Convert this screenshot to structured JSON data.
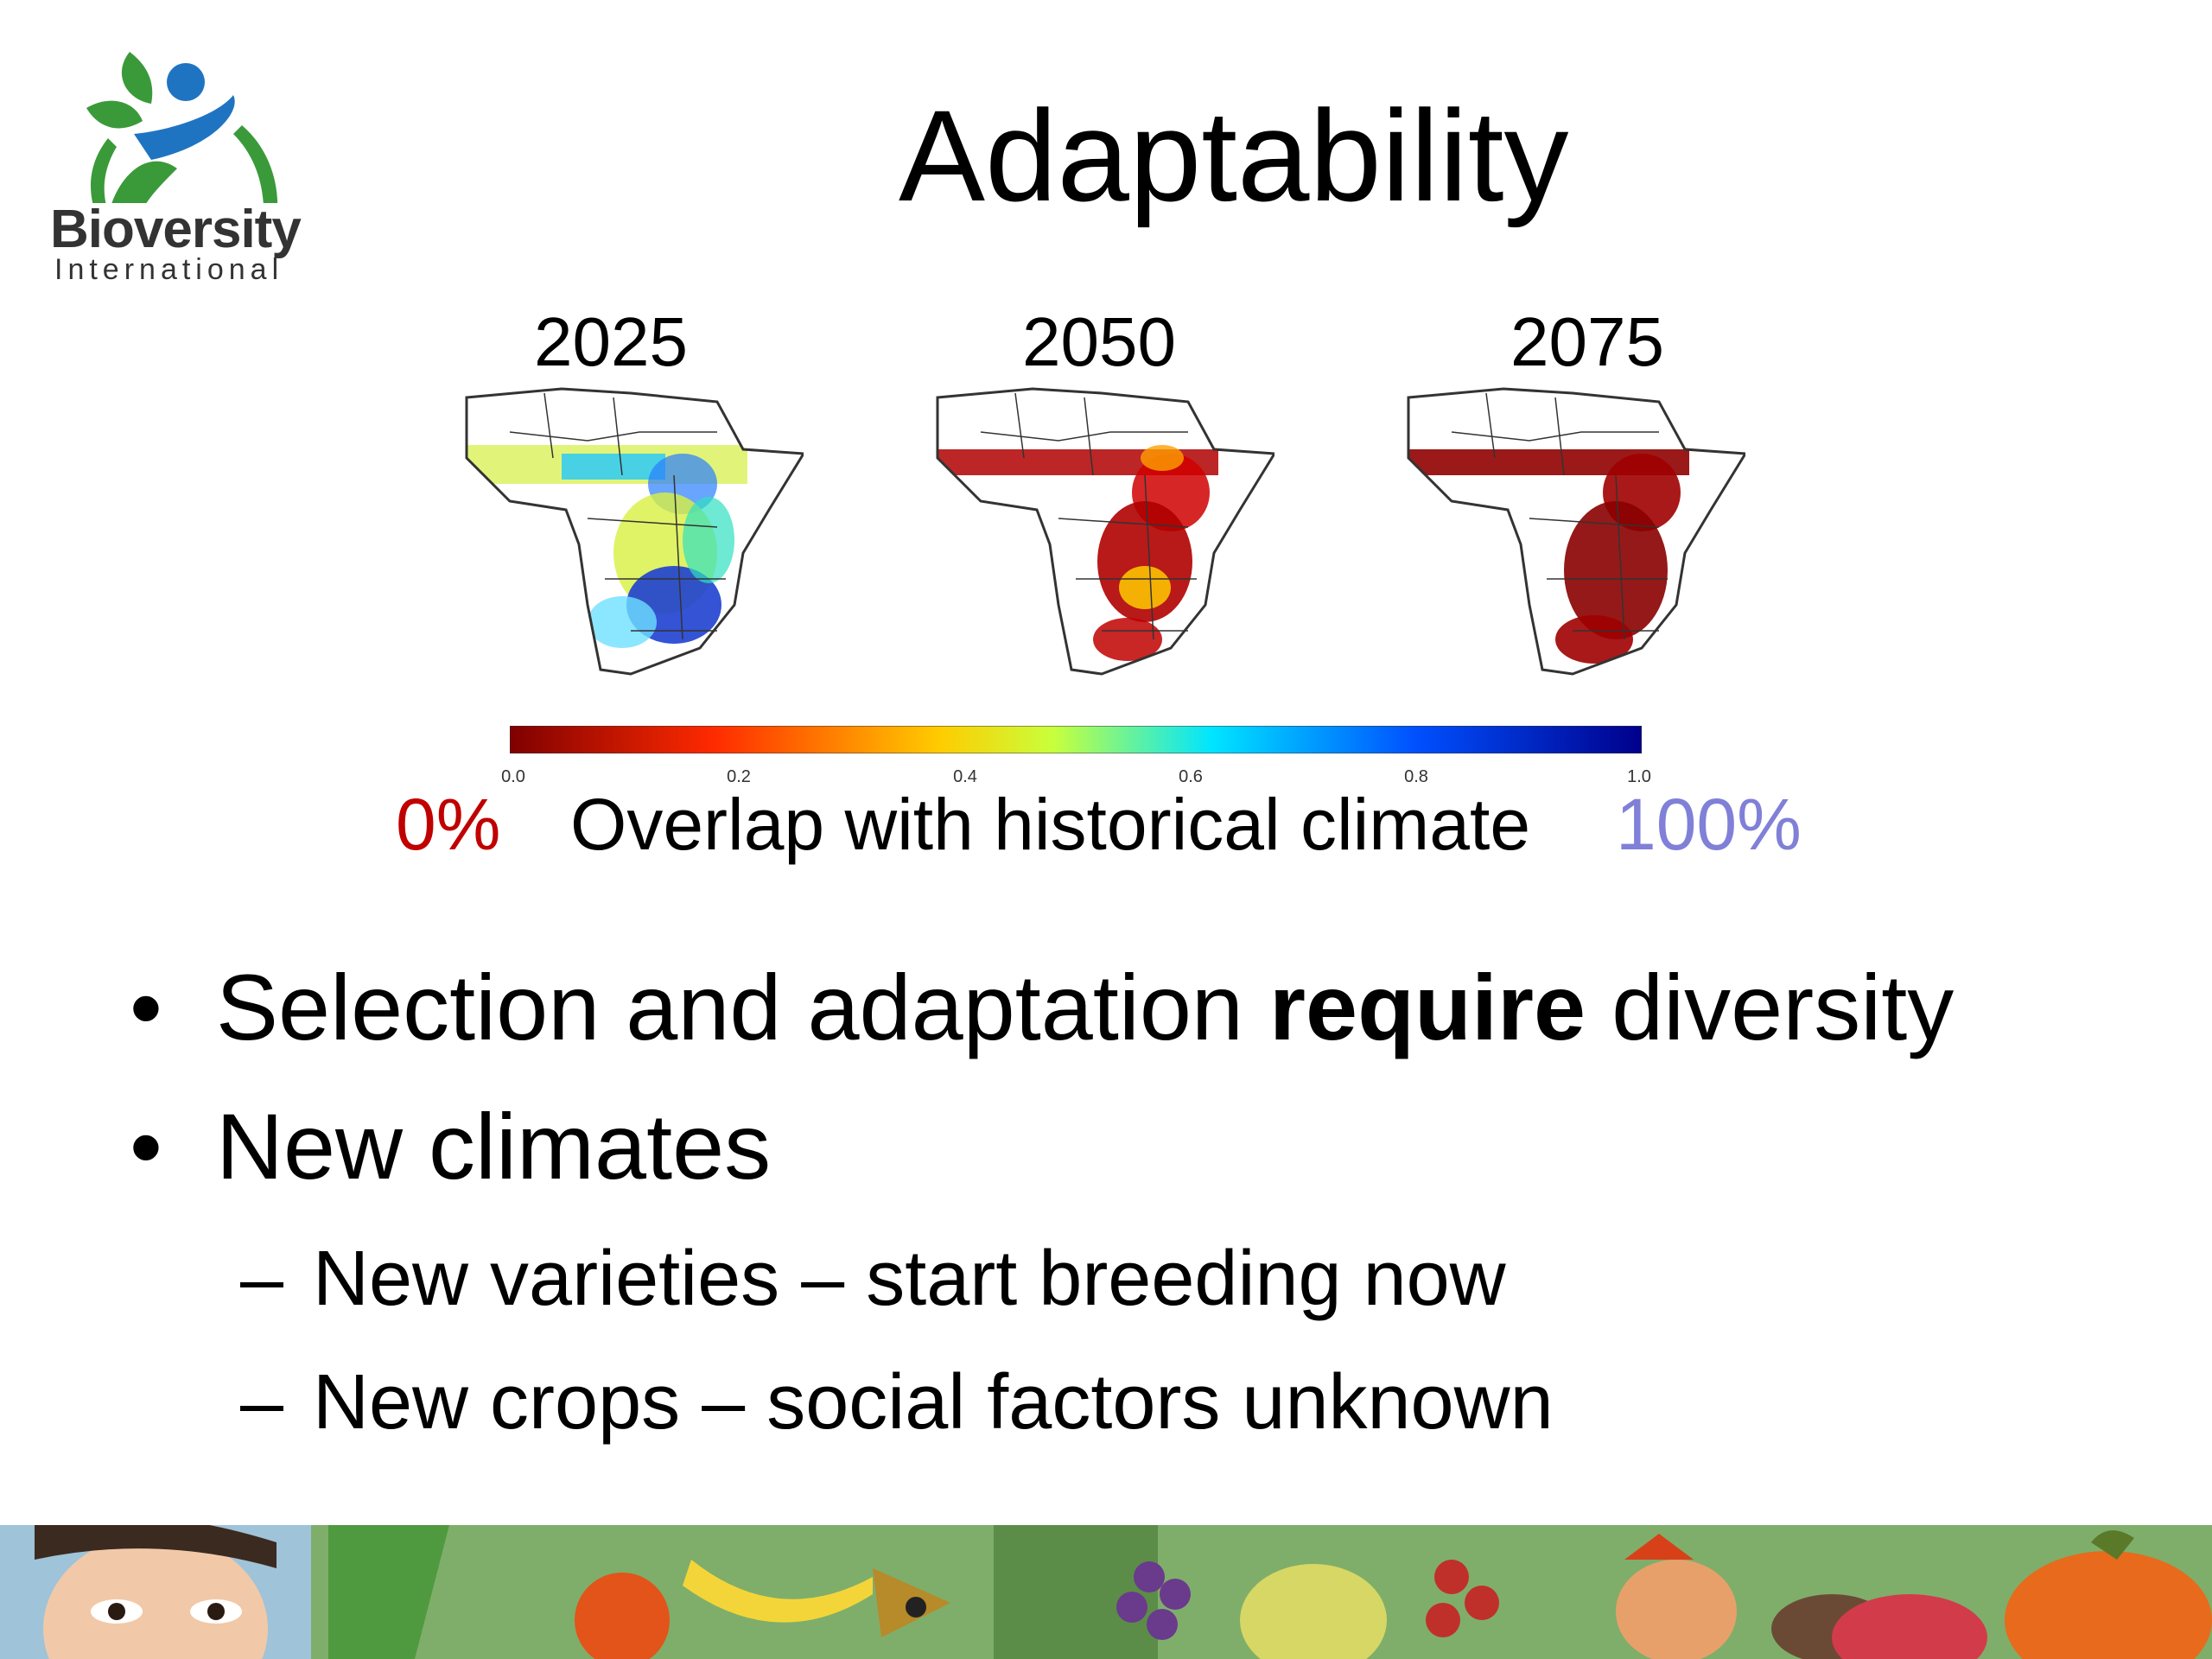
{
  "logo": {
    "word": "Bioversity",
    "sub": "International",
    "icon": "bioversity-leaf-person-logo"
  },
  "slide": {
    "title": "Adaptability"
  },
  "maps": {
    "years": [
      "2025",
      "2050",
      "2075"
    ],
    "icons": [
      "africa-map-2025",
      "africa-map-2050",
      "africa-map-2075"
    ]
  },
  "colorbar": {
    "ticks": [
      "0.0",
      "0.2",
      "0.4",
      "0.6",
      "0.8",
      "1.0"
    ],
    "colors": [
      "#7f0000",
      "#ff2a00",
      "#ffcc00",
      "#c8ff3c",
      "#00e5ff",
      "#0050ff",
      "#00008b"
    ]
  },
  "legend": {
    "low": "0%",
    "label": "Overlap with historical climate",
    "high": "100%",
    "low_color": "#c00000",
    "high_color": "#8080d8"
  },
  "bullets": {
    "b1_pre": "Selection and adaptation ",
    "b1_bold": "require",
    "b1_post": " diversity",
    "b2": "New climates",
    "sub1": "New varieties – start breeding now",
    "sub2": "New crops – social factors unknown",
    "bullet_char": "•",
    "dash_char": "–"
  },
  "banner": {
    "icon": "painted-food-and-people-banner"
  }
}
